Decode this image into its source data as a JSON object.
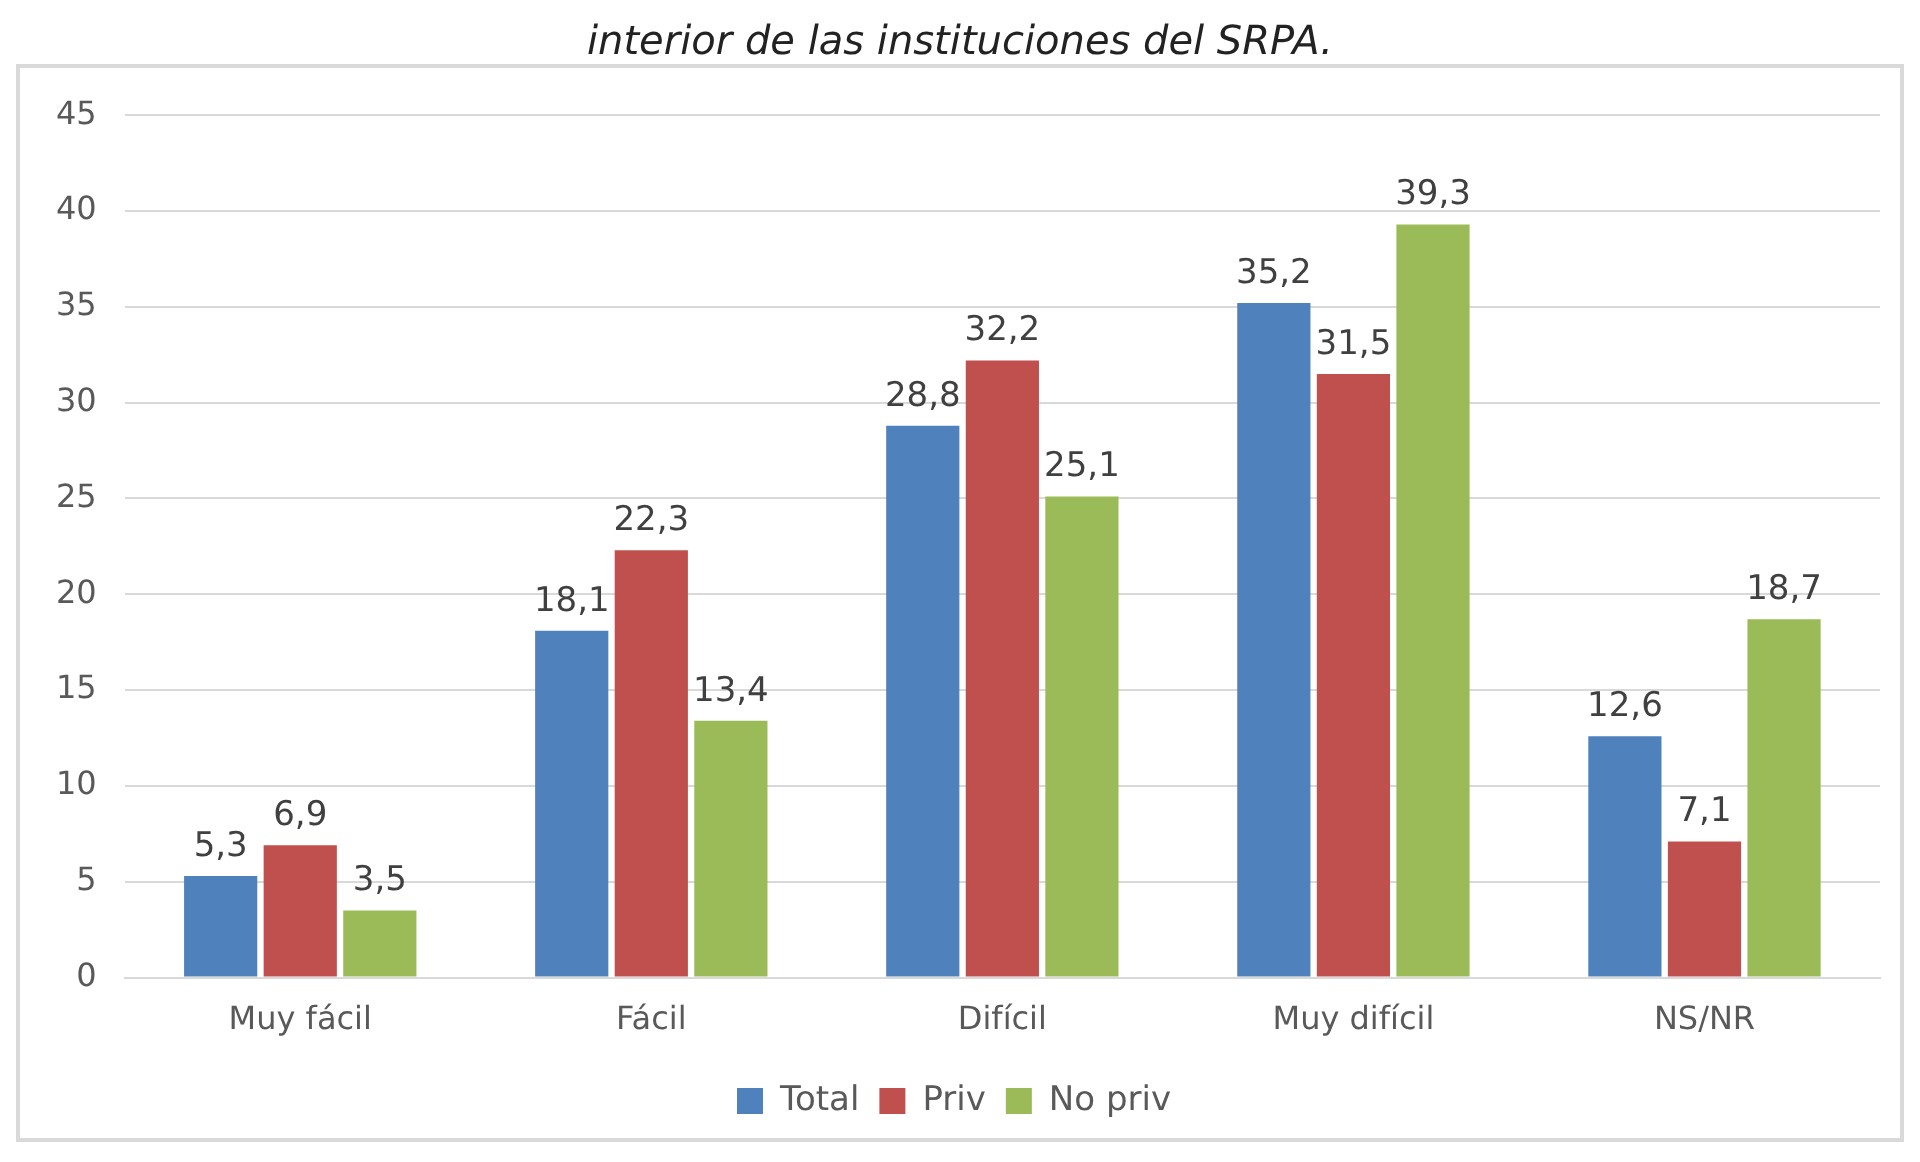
{
  "chart_data": {
    "type": "bar",
    "title": "interior de las instituciones del SRPA.",
    "categories": [
      "Muy fácil",
      "Fácil",
      "Difícil",
      "Muy difícil",
      "NS/NR"
    ],
    "series": [
      {
        "name": "Total",
        "color": "#4f81bd",
        "values": [
          5.3,
          18.1,
          28.8,
          35.2,
          12.6
        ],
        "value_labels": [
          "5,3",
          "18,1",
          "28,8",
          "35,2",
          "12,6"
        ]
      },
      {
        "name": "Priv",
        "color": "#c0504d",
        "values": [
          6.9,
          22.3,
          32.2,
          31.5,
          7.1
        ],
        "value_labels": [
          "6,9",
          "22,3",
          "32,2",
          "31,5",
          "7,1"
        ]
      },
      {
        "name": "No priv",
        "color": "#9bbb59",
        "values": [
          3.5,
          13.4,
          25.1,
          39.3,
          18.7
        ],
        "value_labels": [
          "3,5",
          "13,4",
          "25,1",
          "39,3",
          "18,7"
        ]
      }
    ],
    "ylim": [
      0,
      45
    ],
    "yticks": [
      0,
      5,
      10,
      15,
      20,
      25,
      30,
      35,
      40,
      45
    ],
    "grid": "y",
    "legend": "bottom"
  }
}
